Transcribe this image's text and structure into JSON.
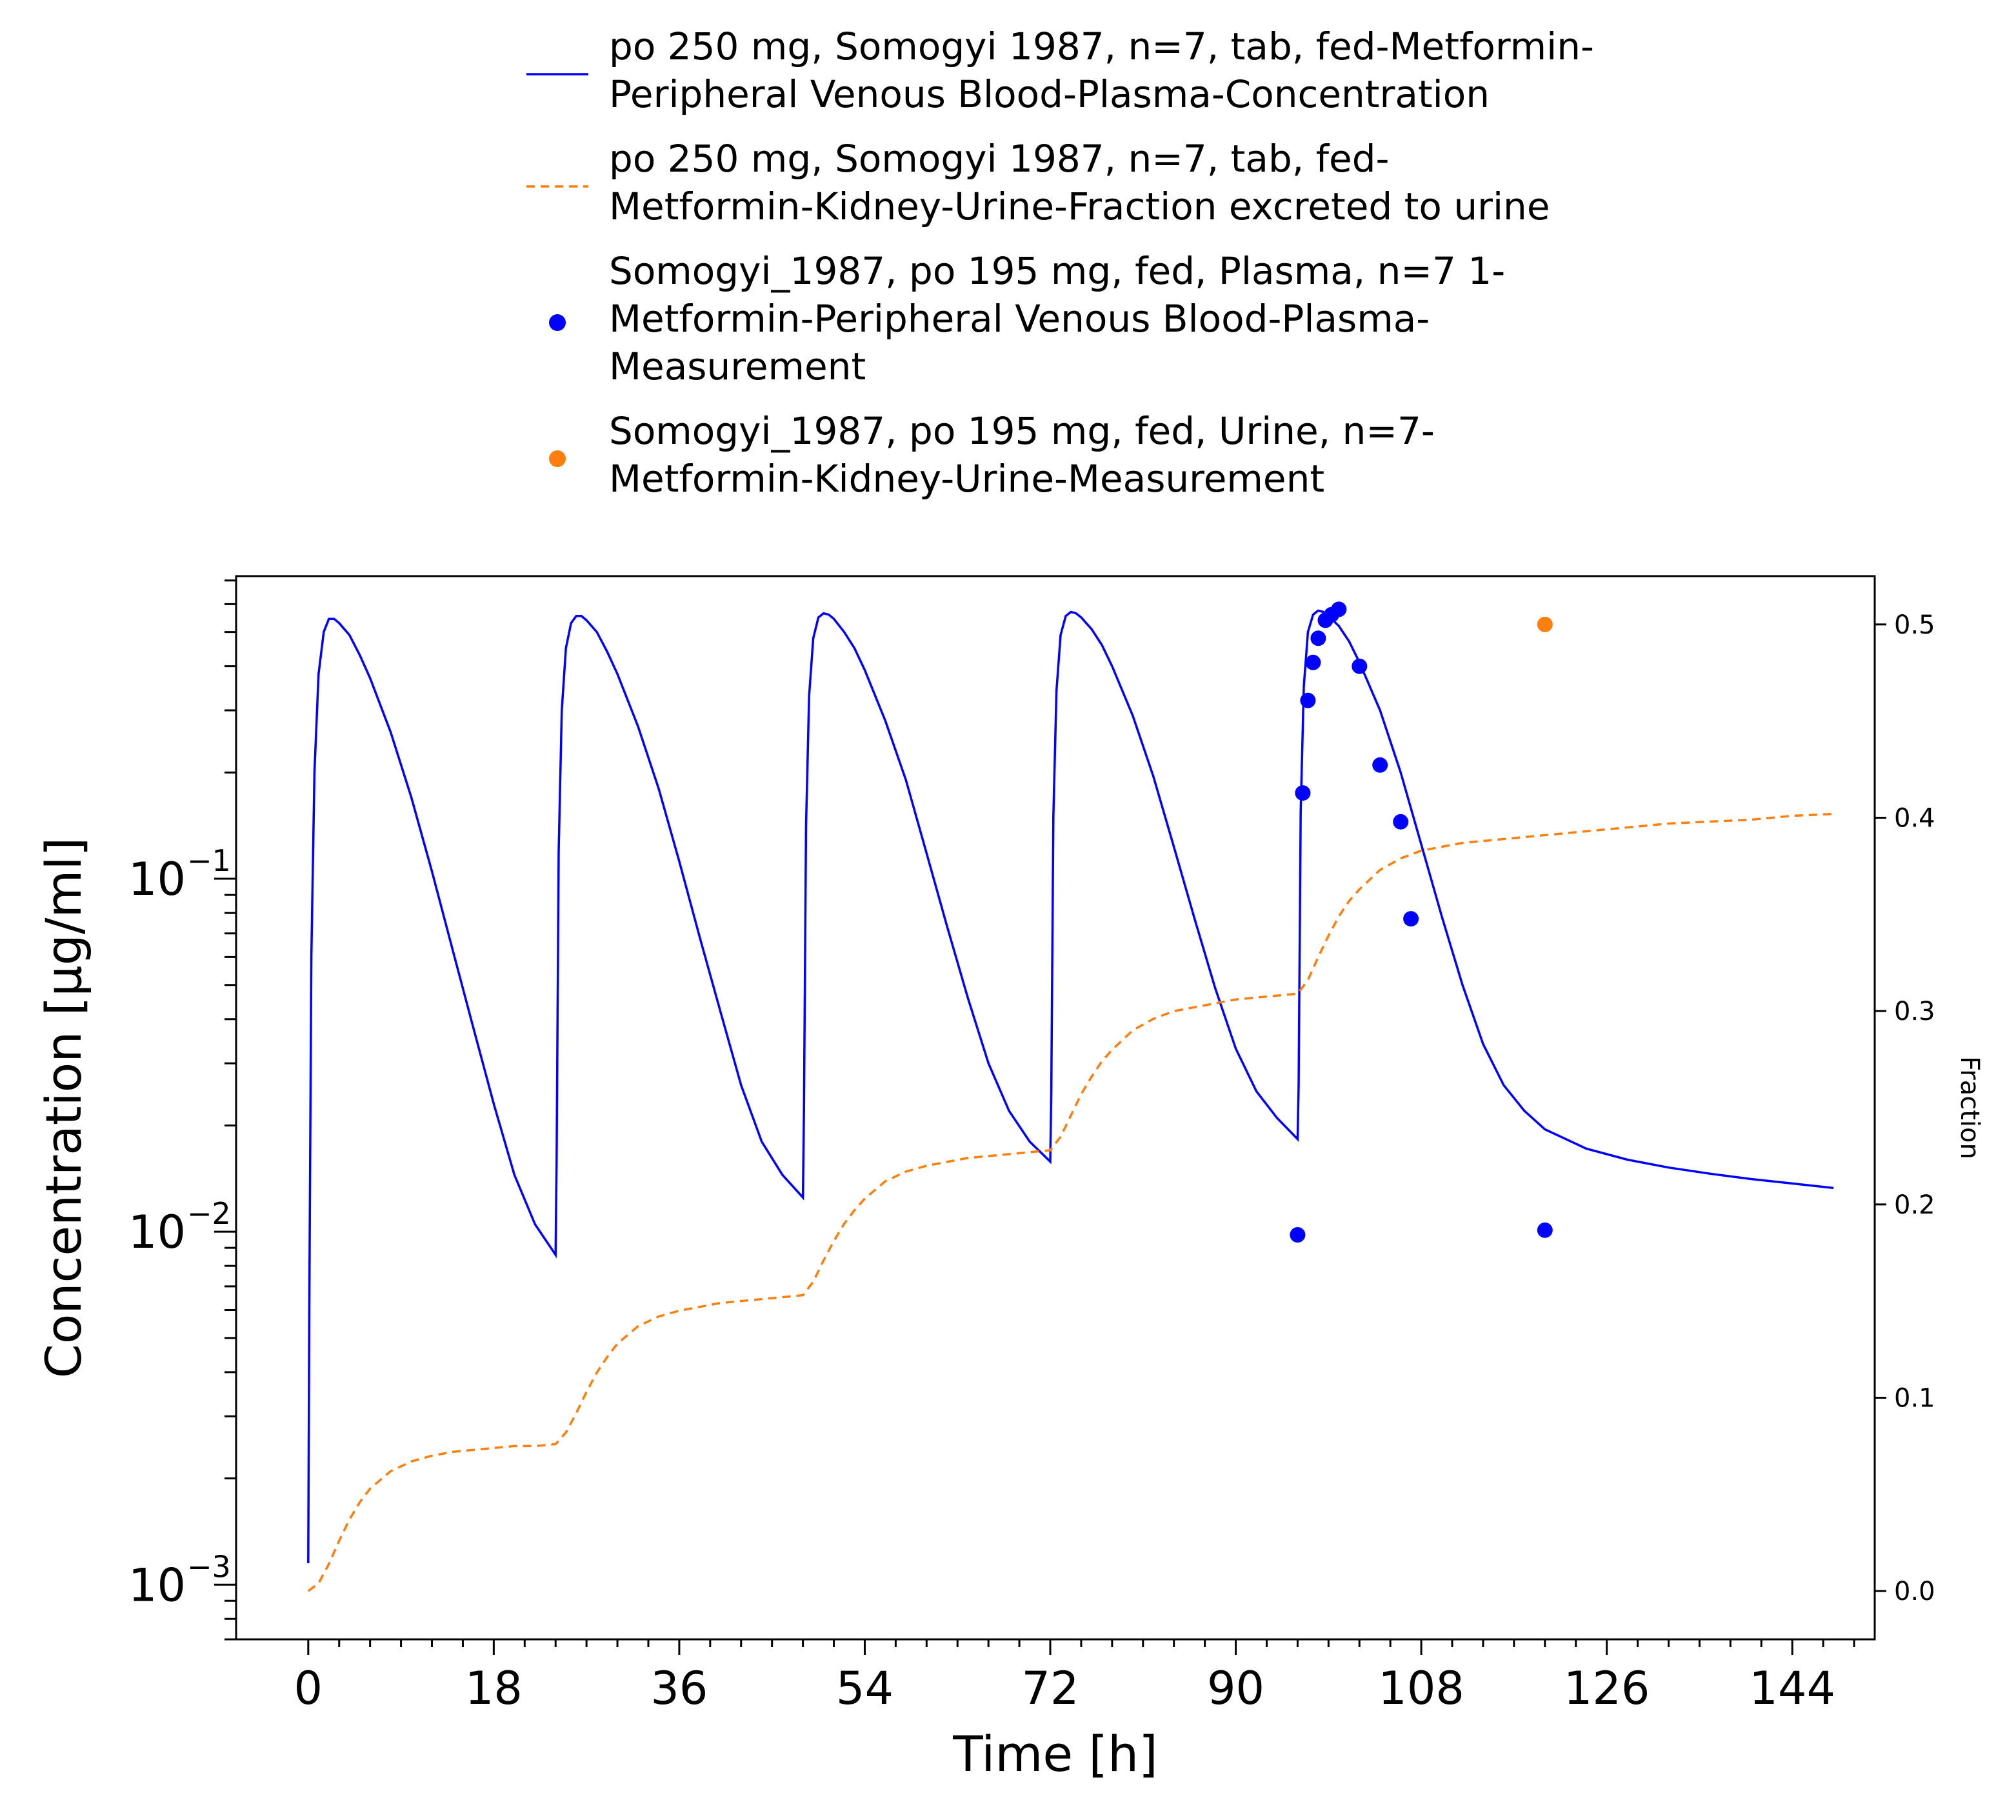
{
  "chart_data": {
    "type": "line",
    "xlabel": "Time [h]",
    "ylabel": "Concentration [µg/ml]",
    "y2label": "Fraction",
    "xlim": [
      -7,
      152
    ],
    "ylim": [
      0.0007,
      0.72
    ],
    "yscale": "log",
    "y2lim": [
      -0.025,
      0.525
    ],
    "x_ticks": [
      0,
      18,
      36,
      54,
      72,
      90,
      108,
      126,
      144
    ],
    "x_tick_labels": [
      "0",
      "18",
      "36",
      "54",
      "72",
      "90",
      "108",
      "126",
      "144"
    ],
    "y_ticks": [
      0.001,
      0.01,
      0.1
    ],
    "y_tick_labels": [
      {
        "base": "10",
        "exp": "−3"
      },
      {
        "base": "10",
        "exp": "−2"
      },
      {
        "base": "10",
        "exp": "−1"
      }
    ],
    "y2_ticks": [
      0.0,
      0.1,
      0.2,
      0.3,
      0.4,
      0.5
    ],
    "y2_tick_labels": [
      "0.0",
      "0.1",
      "0.2",
      "0.3",
      "0.4",
      "0.5"
    ],
    "grid": false,
    "legend_position": "top",
    "legend": [
      {
        "label_lines": [
          "po 250 mg, Somogyi 1987, n=7, tab, fed-Metformin-",
          "Peripheral Venous Blood-Plasma-Concentration"
        ],
        "kind": "line",
        "color": "#0000ff",
        "dash": "none"
      },
      {
        "label_lines": [
          "po 250 mg, Somogyi 1987, n=7, tab, fed-",
          "Metformin-Kidney-Urine-Fraction excreted to urine"
        ],
        "kind": "line",
        "color": "#ff7f0e",
        "dash": "dashed"
      },
      {
        "label_lines": [
          "Somogyi_1987, po 195 mg, fed, Plasma, n=7 1-",
          "Metformin-Peripheral Venous Blood-Plasma-",
          "Measurement"
        ],
        "kind": "marker",
        "color": "#0000ff"
      },
      {
        "label_lines": [
          "Somogyi_1987, po 195 mg, fed, Urine, n=7-",
          "Metformin-Kidney-Urine-Measurement"
        ],
        "kind": "marker",
        "color": "#ff7f0e"
      }
    ],
    "series": [
      {
        "name": "po 250 mg, Somogyi 1987, n=7, tab, fed-Metformin-Peripheral Venous Blood-Plasma-Concentration",
        "axis": "left",
        "style": "line",
        "color": "#0000ff",
        "x": [
          0,
          0.1,
          0.3,
          0.6,
          1.0,
          1.5,
          2.0,
          2.5,
          3.0,
          4,
          5,
          6,
          8,
          10,
          12,
          14,
          16,
          18,
          20,
          22,
          24,
          24.1,
          24.3,
          24.6,
          25,
          25.5,
          26,
          26.5,
          27,
          28,
          29,
          30,
          32,
          34,
          36,
          38,
          40,
          42,
          44,
          46,
          48,
          48.1,
          48.3,
          48.6,
          49,
          49.5,
          50,
          50.5,
          51,
          52,
          53,
          54,
          56,
          58,
          60,
          62,
          64,
          66,
          68,
          70,
          72,
          72.1,
          72.3,
          72.6,
          73,
          73.5,
          74,
          74.5,
          75,
          76,
          77,
          78,
          80,
          82,
          84,
          86,
          88,
          90,
          92,
          94,
          96,
          96.1,
          96.3,
          96.6,
          97,
          97.5,
          98,
          98.5,
          99,
          100,
          101,
          102,
          104,
          106,
          108,
          110,
          112,
          114,
          116,
          118,
          120,
          124,
          128,
          132,
          136,
          140,
          144,
          148
        ],
        "y": [
          0.00115,
          0.006,
          0.06,
          0.2,
          0.38,
          0.5,
          0.545,
          0.545,
          0.53,
          0.49,
          0.43,
          0.37,
          0.26,
          0.17,
          0.105,
          0.063,
          0.038,
          0.023,
          0.0145,
          0.0105,
          0.0086,
          0.016,
          0.12,
          0.3,
          0.45,
          0.53,
          0.555,
          0.555,
          0.54,
          0.5,
          0.44,
          0.38,
          0.27,
          0.18,
          0.112,
          0.068,
          0.042,
          0.026,
          0.018,
          0.0145,
          0.0125,
          0.022,
          0.14,
          0.33,
          0.48,
          0.55,
          0.565,
          0.56,
          0.545,
          0.5,
          0.45,
          0.39,
          0.28,
          0.19,
          0.118,
          0.073,
          0.046,
          0.03,
          0.022,
          0.018,
          0.0158,
          0.025,
          0.15,
          0.34,
          0.49,
          0.555,
          0.57,
          0.565,
          0.55,
          0.51,
          0.46,
          0.4,
          0.29,
          0.195,
          0.123,
          0.077,
          0.049,
          0.033,
          0.025,
          0.021,
          0.0183,
          0.026,
          0.155,
          0.35,
          0.5,
          0.56,
          0.575,
          0.57,
          0.555,
          0.52,
          0.47,
          0.41,
          0.3,
          0.2,
          0.125,
          0.078,
          0.05,
          0.034,
          0.026,
          0.022,
          0.0195,
          0.0172,
          0.016,
          0.0152,
          0.0146,
          0.0141,
          0.0137,
          0.0133
        ]
      },
      {
        "name": "po 250 mg, Somogyi 1987, n=7, tab, fed-Metformin-Kidney-Urine-Fraction excreted to urine",
        "axis": "right",
        "style": "dashed",
        "color": "#ff7f0e",
        "x": [
          0,
          1,
          2,
          3,
          4,
          5,
          6,
          8,
          10,
          12,
          14,
          16,
          18,
          20,
          22,
          24,
          25,
          26,
          27,
          28,
          29,
          30,
          32,
          34,
          36,
          38,
          40,
          42,
          44,
          46,
          48,
          49,
          50,
          51,
          52,
          53,
          54,
          56,
          58,
          60,
          62,
          64,
          66,
          68,
          70,
          72,
          73,
          74,
          75,
          76,
          77,
          78,
          80,
          82,
          84,
          86,
          88,
          90,
          92,
          94,
          96,
          97,
          98,
          99,
          100,
          101,
          102,
          104,
          106,
          108,
          110,
          112,
          114,
          116,
          118,
          120,
          124,
          128,
          132,
          136,
          140,
          144,
          148
        ],
        "y": [
          0.0,
          0.004,
          0.014,
          0.026,
          0.037,
          0.046,
          0.053,
          0.062,
          0.067,
          0.07,
          0.072,
          0.073,
          0.074,
          0.075,
          0.075,
          0.076,
          0.082,
          0.092,
          0.103,
          0.113,
          0.121,
          0.128,
          0.137,
          0.142,
          0.145,
          0.147,
          0.149,
          0.15,
          0.151,
          0.152,
          0.153,
          0.16,
          0.171,
          0.181,
          0.19,
          0.197,
          0.203,
          0.212,
          0.217,
          0.22,
          0.222,
          0.224,
          0.225,
          0.226,
          0.227,
          0.228,
          0.235,
          0.246,
          0.257,
          0.266,
          0.274,
          0.28,
          0.29,
          0.296,
          0.3,
          0.302,
          0.304,
          0.306,
          0.307,
          0.308,
          0.309,
          0.316,
          0.328,
          0.339,
          0.349,
          0.357,
          0.363,
          0.373,
          0.379,
          0.383,
          0.385,
          0.387,
          0.388,
          0.389,
          0.39,
          0.391,
          0.393,
          0.395,
          0.397,
          0.398,
          0.399,
          0.401,
          0.402
        ]
      },
      {
        "name": "Somogyi_1987, po 195 mg, fed, Plasma, n=7 1-Metformin-Peripheral Venous Blood-Plasma-Measurement",
        "axis": "left",
        "style": "scatter",
        "color": "#0000ff",
        "x": [
          96.0,
          96.5,
          97.0,
          97.5,
          98.0,
          98.7,
          99.3,
          100.0,
          102.0,
          104.0,
          106.0,
          107.0,
          120.0
        ],
        "y": [
          0.0098,
          0.175,
          0.32,
          0.41,
          0.48,
          0.54,
          0.56,
          0.58,
          0.4,
          0.21,
          0.145,
          0.077,
          0.0101
        ]
      },
      {
        "name": "Somogyi_1987, po 195 mg, fed, Urine, n=7-Metformin-Kidney-Urine-Measurement",
        "axis": "right",
        "style": "scatter",
        "color": "#ff7f0e",
        "x": [
          120.0
        ],
        "y": [
          0.5
        ]
      }
    ]
  }
}
